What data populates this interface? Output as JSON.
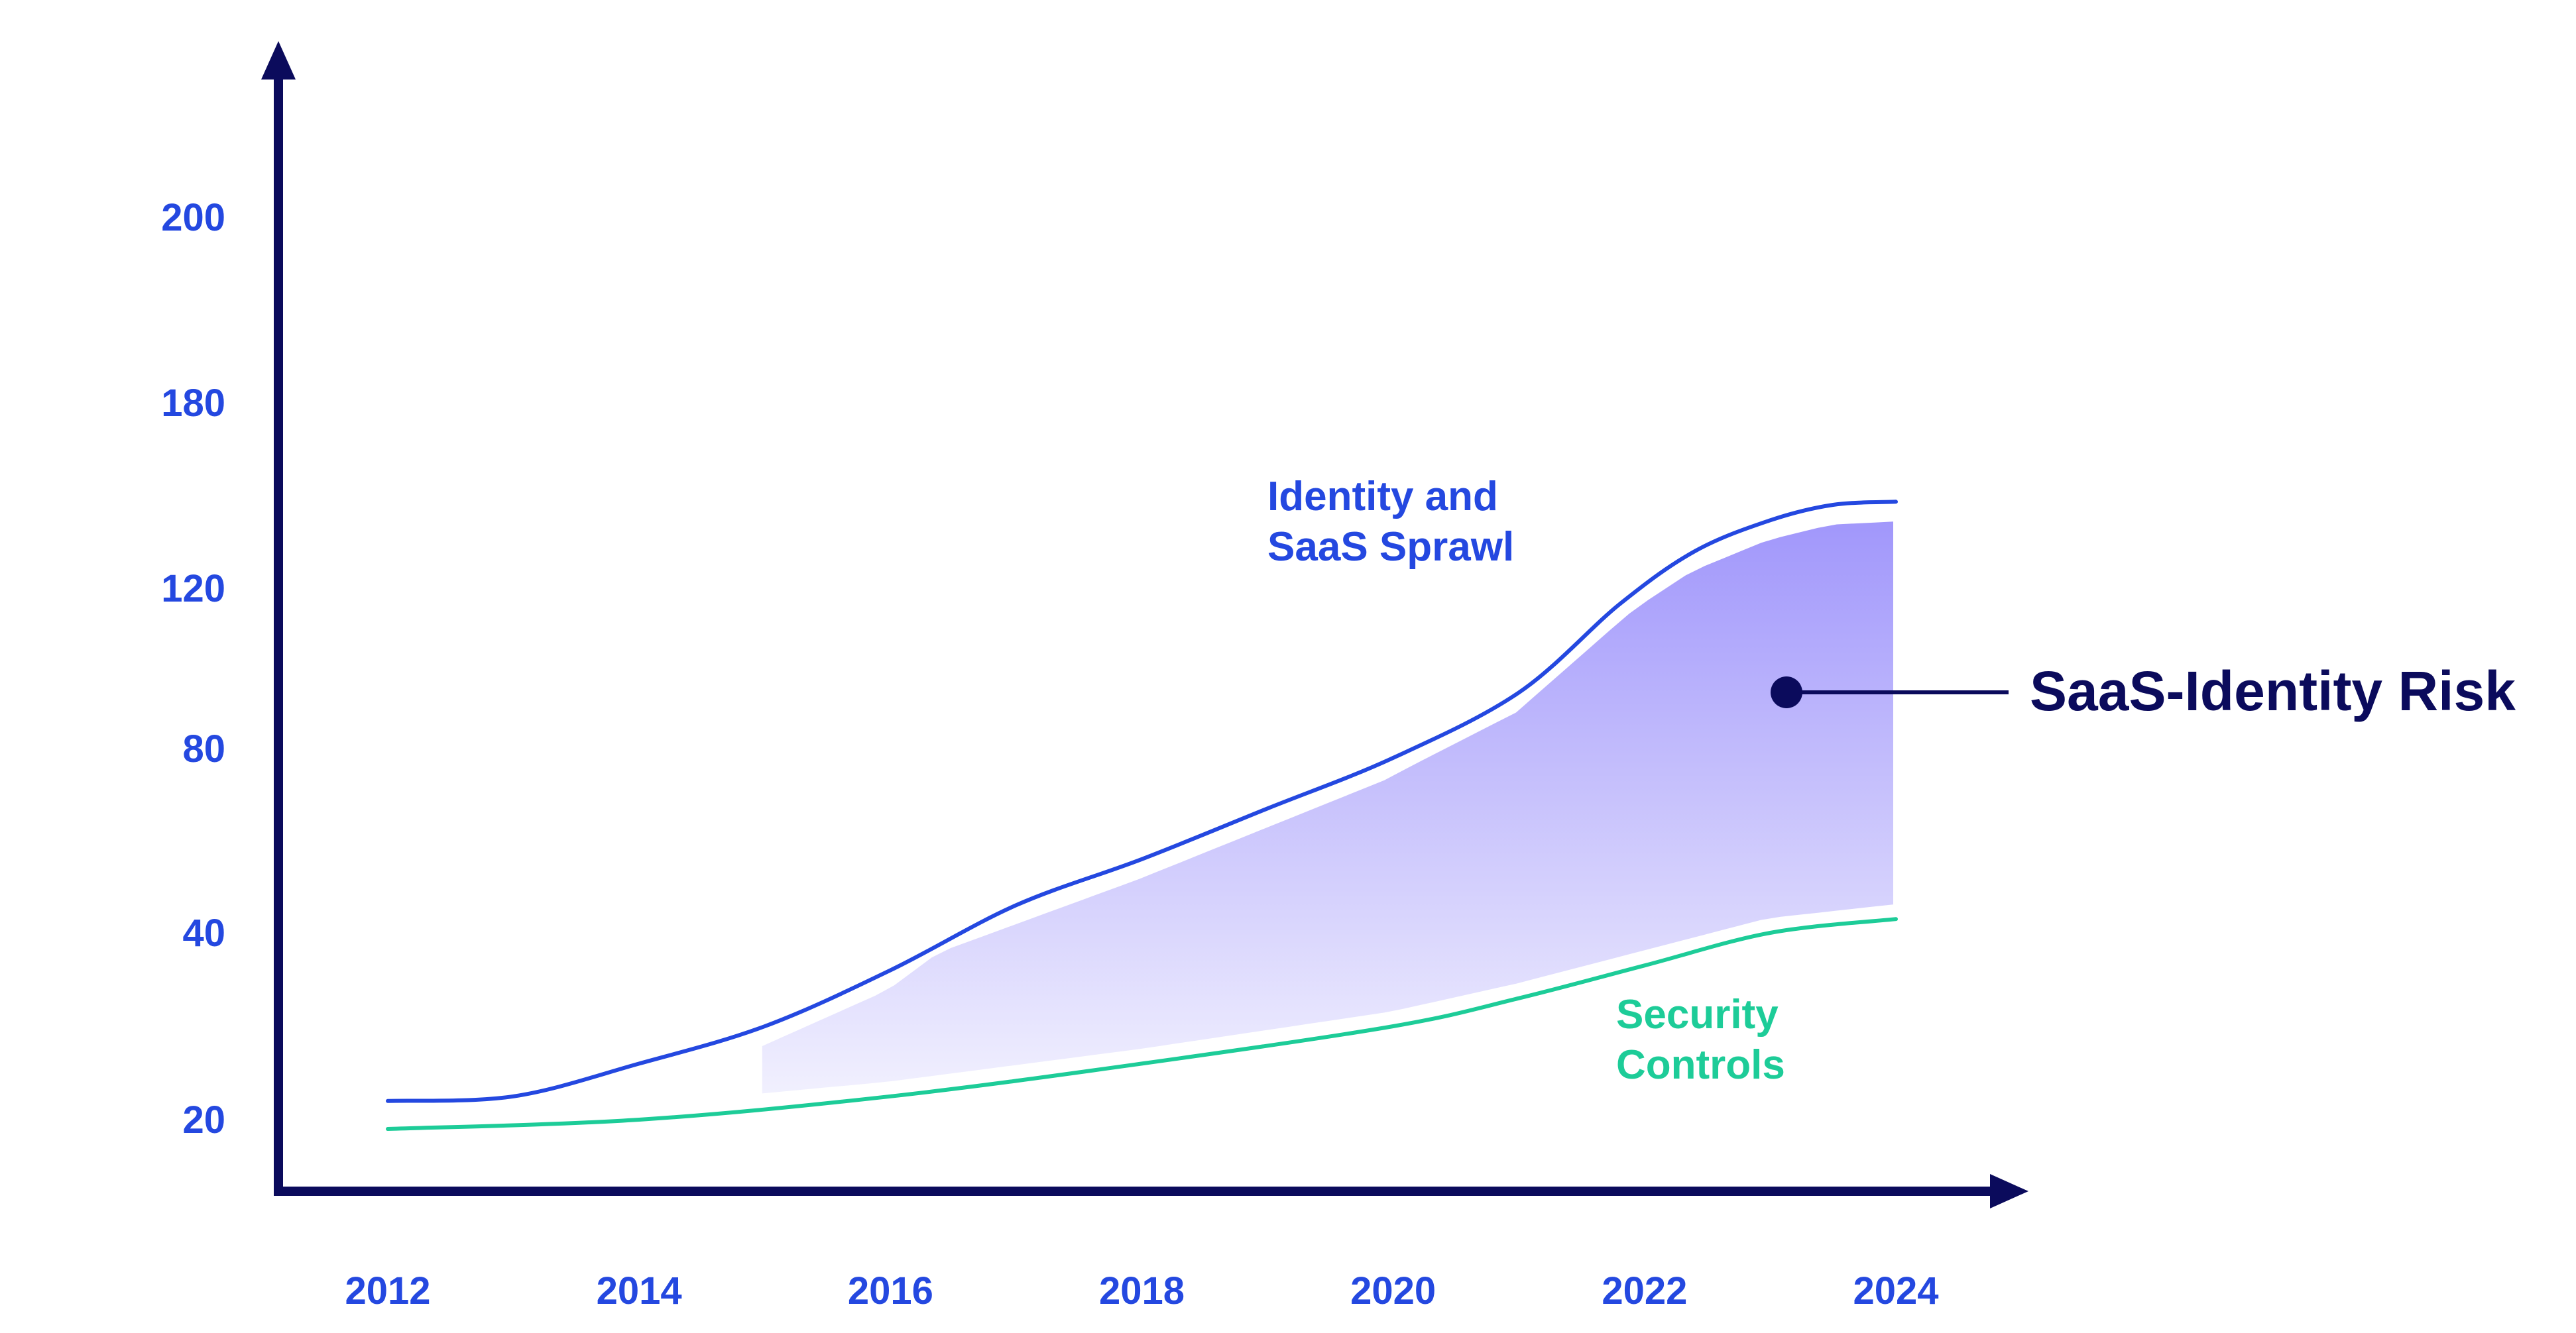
{
  "chart_data": {
    "type": "area",
    "x": [
      2012,
      2014,
      2016,
      2018,
      2020,
      2022,
      2024
    ],
    "x_tick_labels": [
      "2012",
      "2014",
      "2016",
      "2018",
      "2020",
      "2022",
      "2024"
    ],
    "y_tick_labels": [
      "20",
      "40",
      "80",
      "120",
      "180",
      "200"
    ],
    "series": [
      {
        "name_lines": [
          "Identity and",
          "SaaS Sprawl"
        ],
        "color": "#2448E0",
        "points": [
          [
            2012,
            22
          ],
          [
            2013,
            22.5
          ],
          [
            2014,
            26
          ],
          [
            2015,
            30
          ],
          [
            2016,
            36
          ],
          [
            2017,
            46
          ],
          [
            2018,
            56
          ],
          [
            2019,
            67
          ],
          [
            2020,
            78
          ],
          [
            2021,
            94
          ],
          [
            2021.8,
            116
          ],
          [
            2022.4,
            132
          ],
          [
            2023,
            142
          ],
          [
            2023.5,
            147
          ],
          [
            2024,
            148
          ]
        ]
      },
      {
        "name_lines": [
          "Security",
          "Controls"
        ],
        "color": "#1DCC98",
        "points": [
          [
            2012,
            18
          ],
          [
            2014,
            20
          ],
          [
            2016,
            22.5
          ],
          [
            2018,
            26
          ],
          [
            2020,
            30
          ],
          [
            2021,
            33
          ],
          [
            2022,
            36.5
          ],
          [
            2023,
            40
          ],
          [
            2024,
            43
          ]
        ]
      }
    ],
    "band": {
      "label": "SaaS-Identity Risk",
      "x_range": [
        2015,
        2024
      ],
      "color_top": "#A197FB",
      "color_bottom": "#F1F0FE"
    },
    "axis_color": "#0B0B5C",
    "tick_color": "#2448E0",
    "grid": false,
    "legend": "inline"
  }
}
